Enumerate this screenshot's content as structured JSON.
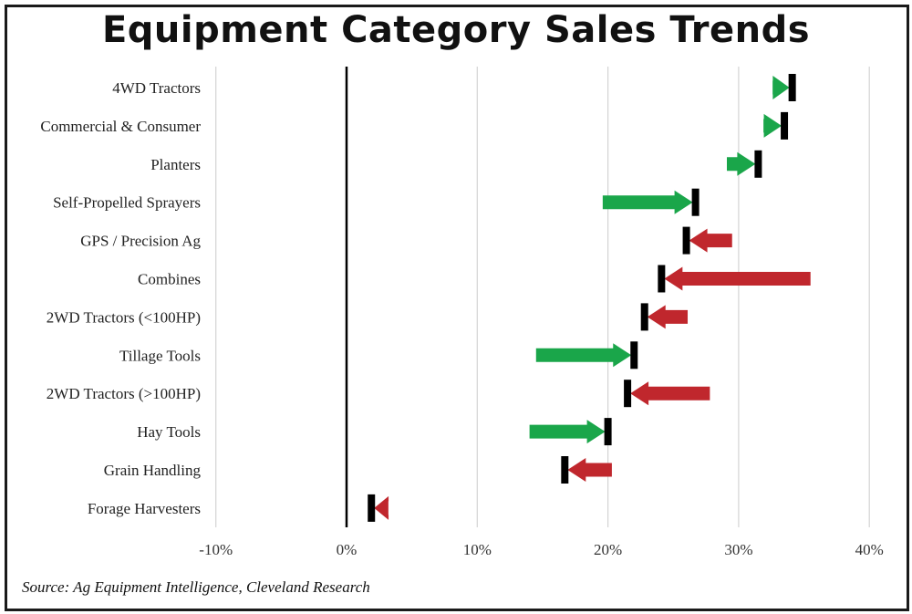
{
  "title": "Equipment Category Sales Trends",
  "source": "Source: Ag Equipment Intelligence, Cleveland Research",
  "colors": {
    "increase": "#1aa64a",
    "decrease": "#c0272d",
    "marker": "#000000",
    "grid": "#d4d4d4",
    "zero_line": "#000000"
  },
  "chart_data": {
    "type": "bar",
    "categories": [
      "4WD Tractors",
      "Commercial & Consumer",
      "Planters",
      "Self-Propelled Sprayers",
      "GPS / Precision Ag",
      "Combines",
      "2WD Tractors (<100HP)",
      "Tillage Tools",
      "2WD Tractors (>100HP)",
      "Hay Tools",
      "Grain Handling",
      "Forage Harvesters"
    ],
    "series": [
      {
        "name": "",
        "values_start": [
          32.6,
          31.9,
          29.1,
          19.6,
          29.5,
          35.5,
          26.1,
          14.5,
          27.8,
          14.0,
          20.3,
          3.2
        ],
        "values_end": [
          34.1,
          33.5,
          31.5,
          26.7,
          26.0,
          24.1,
          22.8,
          22.0,
          21.5,
          20.0,
          16.7,
          1.9
        ]
      }
    ],
    "xlim": [
      -10,
      40
    ],
    "xticks": [
      -10,
      0,
      10,
      20,
      30,
      40
    ],
    "xtick_labels": [
      "-10%",
      "0%",
      "10%",
      "20%",
      "30%",
      "40%"
    ],
    "grid": true,
    "xlabel": "",
    "ylabel": ""
  }
}
